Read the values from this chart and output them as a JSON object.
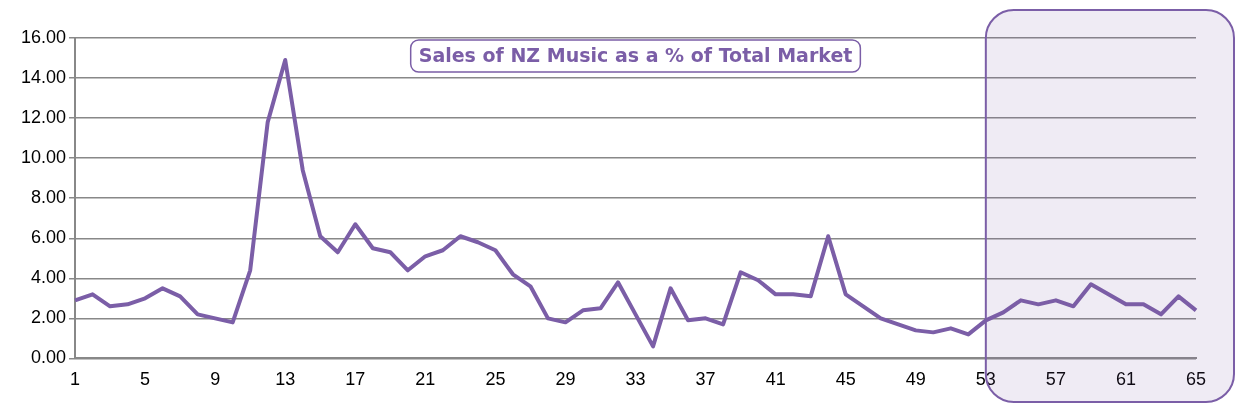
{
  "chart_data": {
    "type": "line",
    "title": "Sales of NZ Music as a % of Total Market",
    "categories": [
      "1",
      null,
      null,
      null,
      "5",
      null,
      null,
      null,
      "9",
      null,
      null,
      null,
      "13",
      null,
      null,
      null,
      "17",
      null,
      null,
      null,
      "21",
      null,
      null,
      null,
      "25",
      null,
      null,
      null,
      "29",
      null,
      null,
      null,
      "33",
      null,
      null,
      null,
      "37",
      null,
      null,
      null,
      "41",
      null,
      null,
      null,
      "45",
      null,
      null,
      null,
      "49",
      null,
      null,
      null,
      "53",
      null,
      null,
      null,
      "57",
      null,
      null,
      null,
      "61",
      null,
      null,
      null,
      "65"
    ],
    "series": [
      {
        "color": "#7b5ea7",
        "values": [
          2.9,
          3.2,
          2.6,
          2.7,
          3.0,
          3.5,
          3.1,
          2.2,
          2.0,
          1.8,
          4.4,
          11.8,
          14.9,
          9.4,
          6.1,
          5.3,
          6.7,
          5.5,
          5.3,
          4.4,
          5.1,
          5.4,
          6.1,
          5.8,
          5.4,
          4.2,
          3.6,
          2.0,
          1.8,
          2.4,
          2.5,
          3.8,
          2.2,
          0.6,
          3.5,
          1.9,
          2.0,
          1.7,
          4.3,
          3.9,
          3.2,
          3.2,
          3.1,
          6.1,
          3.2,
          2.6,
          2.0,
          1.7,
          1.4,
          1.3,
          1.5,
          1.2,
          1.9,
          2.3,
          2.9,
          2.7,
          2.9,
          2.6,
          3.7,
          3.2,
          2.7,
          2.7,
          2.2,
          3.1,
          2.4
        ]
      }
    ],
    "ylim": [
      0,
      16
    ],
    "yticks": [
      {
        "value": 0,
        "label": "0.00"
      },
      {
        "value": 2,
        "label": "2.00"
      },
      {
        "value": 4,
        "label": "4.00"
      },
      {
        "value": 6,
        "label": "6.00"
      },
      {
        "value": 8,
        "label": "8.00"
      },
      {
        "value": 10,
        "label": "10.00"
      },
      {
        "value": 12,
        "label": "12.00"
      },
      {
        "value": 14,
        "label": "14.00"
      },
      {
        "value": 16,
        "label": "16.00"
      }
    ],
    "bands": [
      {
        "axis": "x",
        "from": "53",
        "to": "65",
        "color": "#7b5ea7"
      }
    ],
    "grid": "y",
    "legend": false,
    "marker": "none",
    "line_style": "solid"
  }
}
